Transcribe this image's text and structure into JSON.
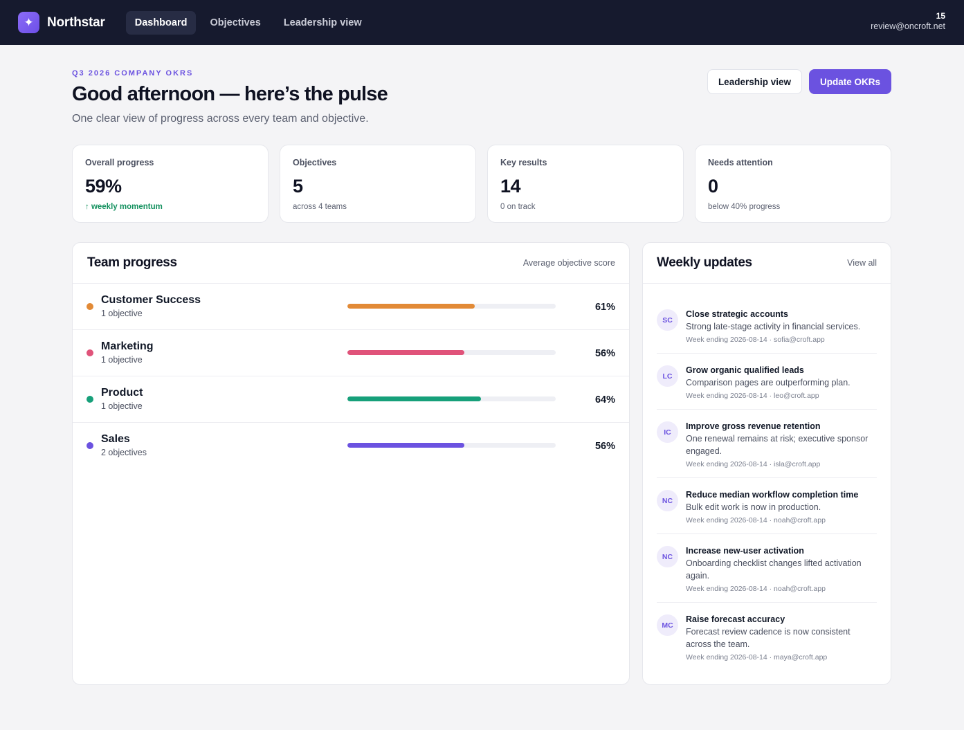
{
  "app": {
    "name": "Northstar",
    "logo_icon": "sparkle-icon",
    "nav": [
      {
        "label": "Dashboard",
        "active": true
      },
      {
        "label": "Objectives",
        "active": false
      },
      {
        "label": "Leadership view",
        "active": false
      }
    ],
    "user": {
      "count": "15",
      "email": "review@oncroft.net"
    }
  },
  "header": {
    "eyebrow": "Q3 2026 COMPANY OKRS",
    "title": "Good afternoon — here’s the pulse",
    "subtitle": "One clear view of progress across every team and objective.",
    "secondary_button": "Leadership view",
    "primary_button": "Update OKRs"
  },
  "stats": [
    {
      "label": "Overall progress",
      "value": "59%",
      "note": "↑ weekly momentum",
      "positive": true
    },
    {
      "label": "Objectives",
      "value": "5",
      "note": "across 4 teams",
      "positive": false
    },
    {
      "label": "Key results",
      "value": "14",
      "note": "0 on track",
      "positive": false
    },
    {
      "label": "Needs attention",
      "value": "0",
      "note": "below 40% progress",
      "positive": false
    }
  ],
  "team_progress": {
    "title": "Team progress",
    "aside": "Average objective score",
    "teams": [
      {
        "name": "Customer Success",
        "sub": "1 objective",
        "percent_label": "61%",
        "progress": 0.61,
        "color": "#e28a36"
      },
      {
        "name": "Marketing",
        "sub": "1 objective",
        "percent_label": "56%",
        "progress": 0.56,
        "color": "#e0537a"
      },
      {
        "name": "Product",
        "sub": "1 objective",
        "percent_label": "64%",
        "progress": 0.64,
        "color": "#17a07a"
      },
      {
        "name": "Sales",
        "sub": "2 objectives",
        "percent_label": "56%",
        "progress": 0.56,
        "color": "#6b52e0"
      }
    ]
  },
  "weekly_updates": {
    "title": "Weekly updates",
    "view_all": "View all",
    "items": [
      {
        "initials": "SC",
        "title": "Close strategic accounts",
        "text": "Strong late-stage activity in financial services.",
        "meta": "Week ending 2026-08-14 · sofia@croft.app"
      },
      {
        "initials": "LC",
        "title": "Grow organic qualified leads",
        "text": "Comparison pages are outperforming plan.",
        "meta": "Week ending 2026-08-14 · leo@croft.app"
      },
      {
        "initials": "IC",
        "title": "Improve gross revenue retention",
        "text": "One renewal remains at risk; executive sponsor engaged.",
        "meta": "Week ending 2026-08-14 · isla@croft.app"
      },
      {
        "initials": "NC",
        "title": "Reduce median workflow completion time",
        "text": "Bulk edit work is now in production.",
        "meta": "Week ending 2026-08-14 · noah@croft.app"
      },
      {
        "initials": "NC",
        "title": "Increase new-user activation",
        "text": "Onboarding checklist changes lifted activation again.",
        "meta": "Week ending 2026-08-14 · noah@croft.app"
      },
      {
        "initials": "MC",
        "title": "Raise forecast accuracy",
        "text": "Forecast review cadence is now consistent across the team.",
        "meta": "Week ending 2026-08-14 · maya@croft.app"
      }
    ]
  }
}
